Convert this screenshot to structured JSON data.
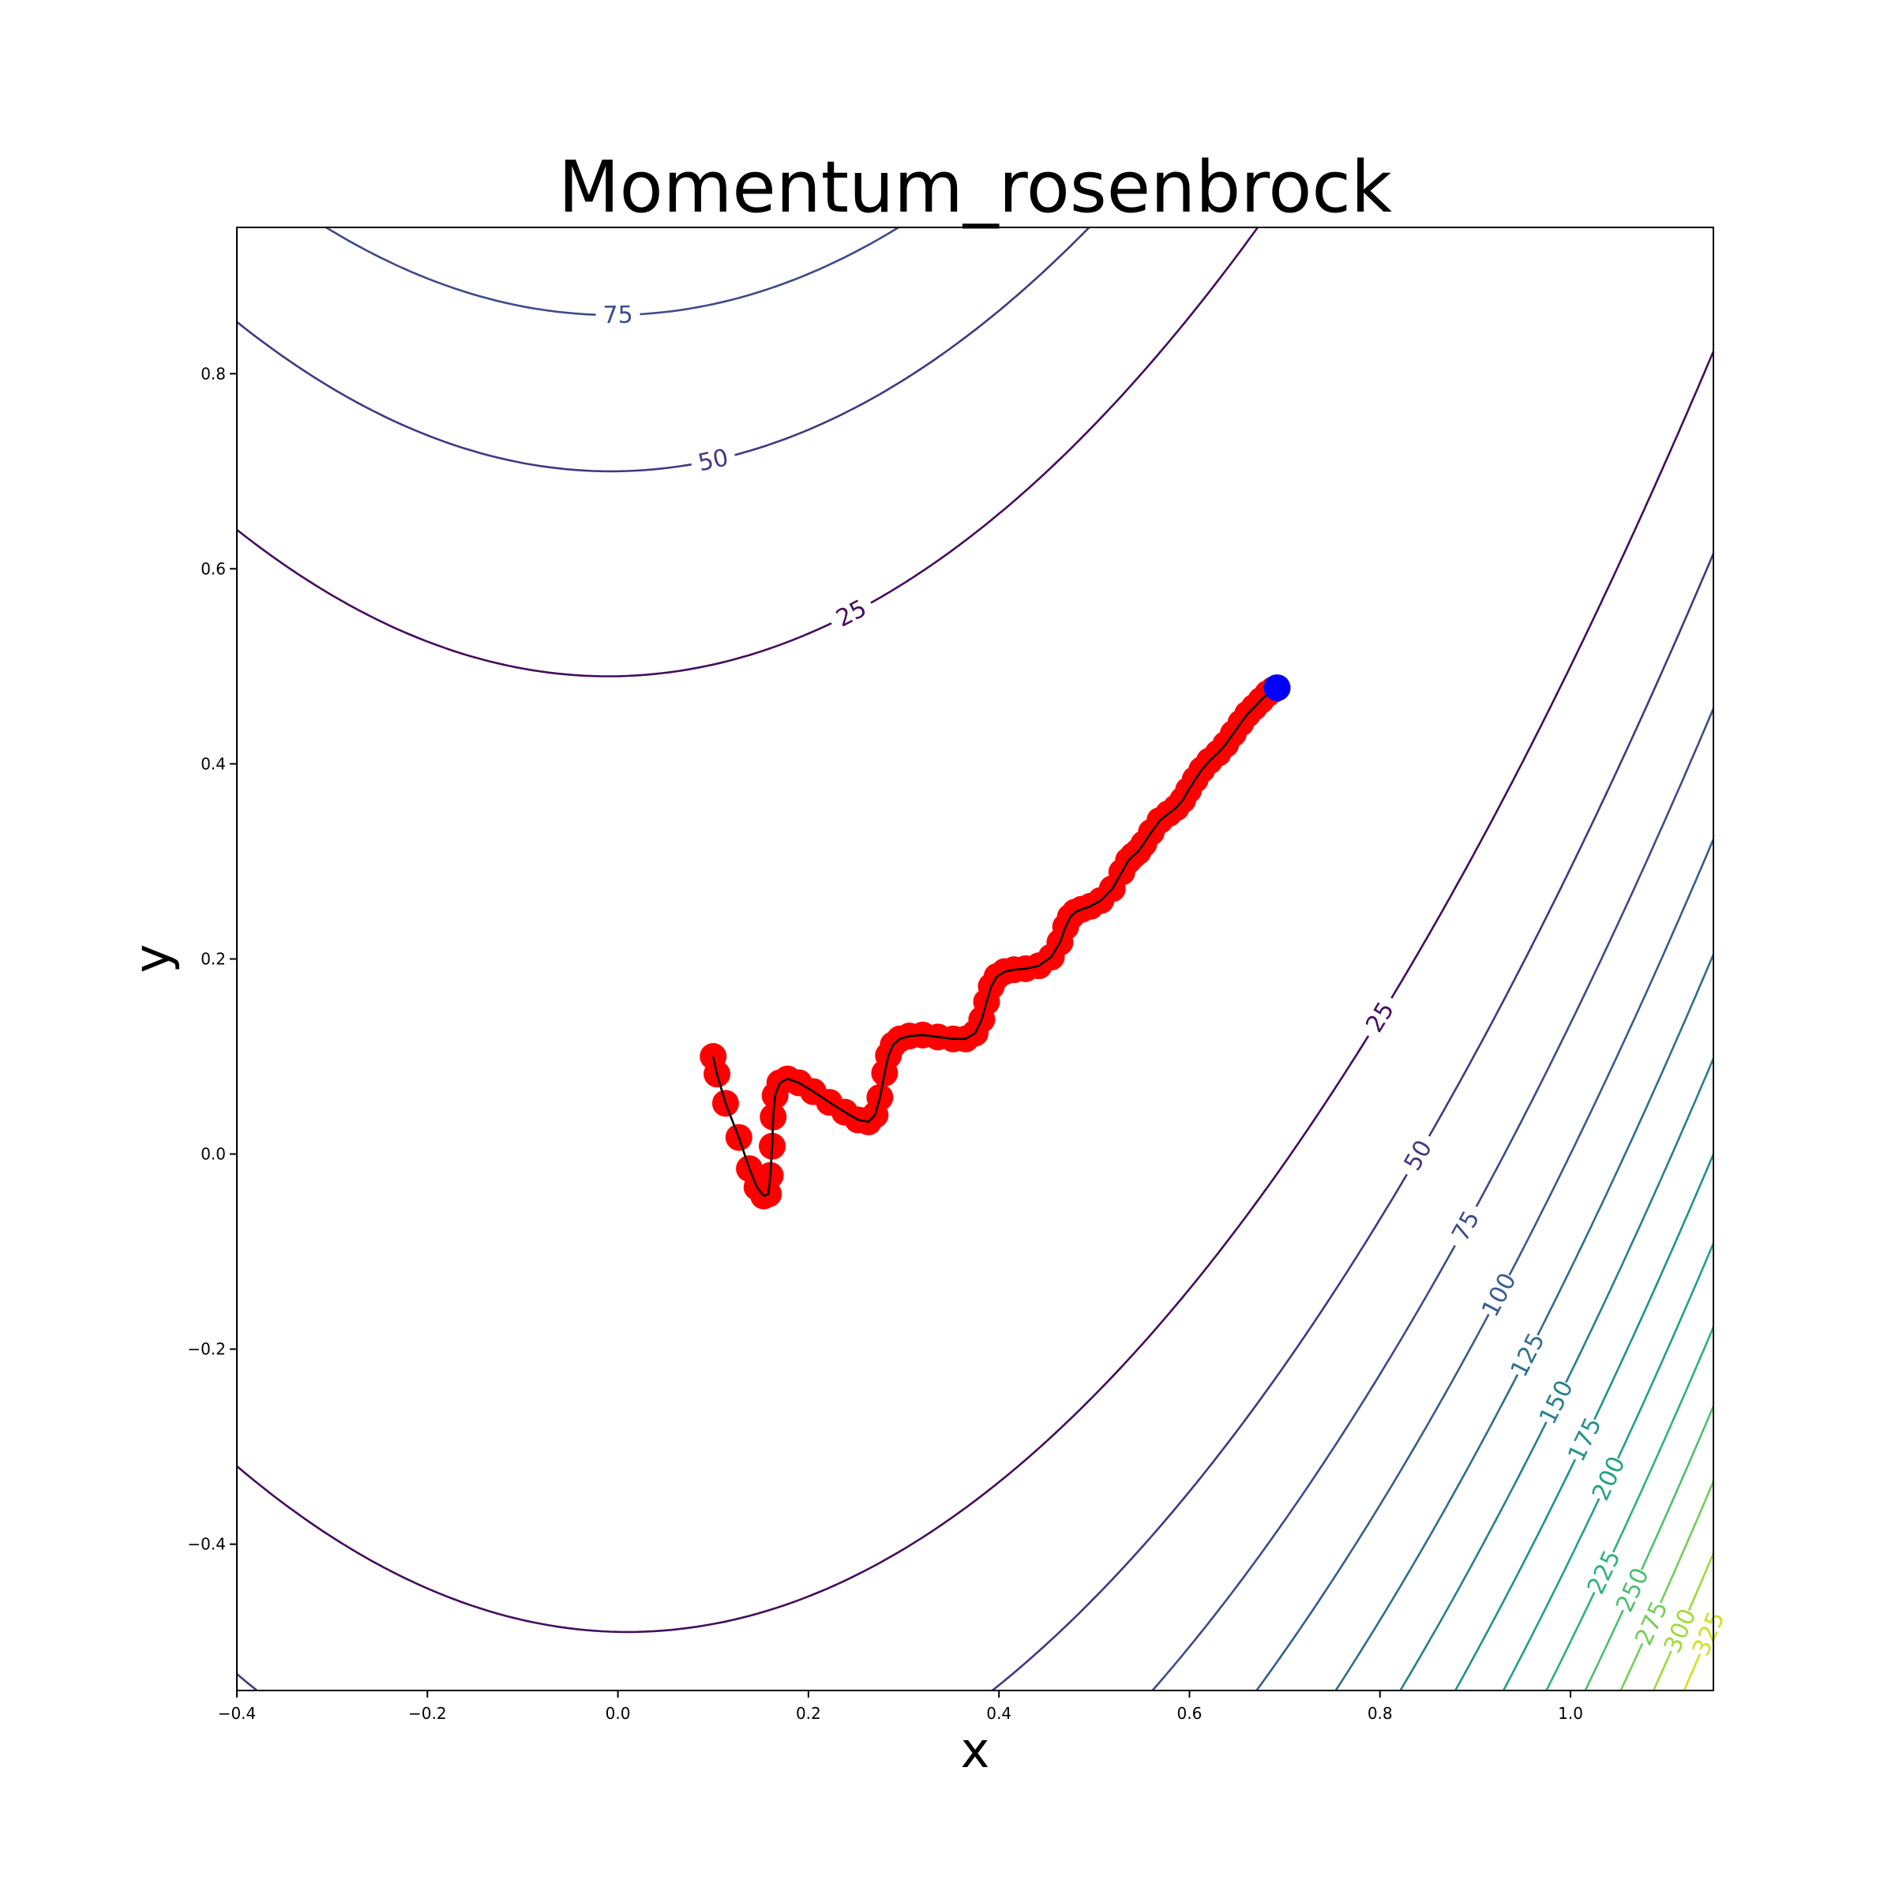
{
  "chart_data": {
    "type": "line",
    "title": "Momentum_rosenbrock",
    "xlabel": "x",
    "ylabel": "y",
    "xlim": [
      -0.4,
      1.15
    ],
    "ylim": [
      -0.55,
      0.95
    ],
    "xticks": [
      -0.4,
      -0.2,
      0.0,
      0.2,
      0.4,
      0.6,
      0.8,
      1.0
    ],
    "xtick_labels": [
      "−0.4",
      "−0.2",
      "0.0",
      "0.2",
      "0.4",
      "0.6",
      "0.8",
      "1.0"
    ],
    "yticks": [
      -0.4,
      -0.2,
      0.0,
      0.2,
      0.4,
      0.6,
      0.8
    ],
    "ytick_labels": [
      "−0.4",
      "−0.2",
      "0.0",
      "0.2",
      "0.4",
      "0.6",
      "0.8"
    ],
    "grid": false,
    "contour": {
      "function": "rosenbrock",
      "levels": [
        25,
        50,
        75,
        100,
        125,
        150,
        175,
        200,
        225,
        250,
        275,
        300,
        325
      ],
      "level_labels": [
        "25",
        "50",
        "75",
        "100",
        "125",
        "150",
        "175",
        "200",
        "225",
        "250",
        "275",
        "300",
        "325"
      ],
      "colormap": "viridis",
      "colors": {
        "25": "#440d5c",
        "50": "#463681",
        "75": "#3f4a8a",
        "100": "#365c8d",
        "125": "#2e6e8e",
        "150": "#277f8e",
        "175": "#21918c",
        "200": "#1fa187",
        "225": "#2db27d",
        "250": "#4ac16d",
        "275": "#71cf57",
        "300": "#a0da39",
        "325": "#d0e11c"
      }
    },
    "path": {
      "name": "",
      "marker_color": "#ff0000",
      "line_color": "#000000",
      "end_marker_color": "#0000ff",
      "x": [
        0.1,
        0.104,
        0.113,
        0.127,
        0.138,
        0.146,
        0.153,
        0.158,
        0.16,
        0.162,
        0.163,
        0.165,
        0.17,
        0.178,
        0.19,
        0.205,
        0.222,
        0.238,
        0.252,
        0.263,
        0.27,
        0.275,
        0.28,
        0.284,
        0.289,
        0.296,
        0.306,
        0.32,
        0.336,
        0.352,
        0.365,
        0.375,
        0.382,
        0.387,
        0.392,
        0.398,
        0.406,
        0.416,
        0.428,
        0.442,
        0.455,
        0.464,
        0.47,
        0.475,
        0.48,
        0.487,
        0.496,
        0.507,
        0.519,
        0.529,
        0.536,
        0.541,
        0.546,
        0.552,
        0.56,
        0.569,
        0.578,
        0.586,
        0.593,
        0.599,
        0.606,
        0.613,
        0.621,
        0.63,
        0.638,
        0.646,
        0.654,
        0.661,
        0.668,
        0.675,
        0.682,
        0.688,
        0.692
      ],
      "y": [
        0.1,
        0.082,
        0.052,
        0.017,
        -0.015,
        -0.034,
        -0.043,
        -0.041,
        -0.022,
        0.008,
        0.038,
        0.06,
        0.073,
        0.077,
        0.073,
        0.064,
        0.053,
        0.043,
        0.035,
        0.033,
        0.04,
        0.058,
        0.083,
        0.101,
        0.112,
        0.118,
        0.121,
        0.122,
        0.12,
        0.118,
        0.118,
        0.124,
        0.138,
        0.156,
        0.172,
        0.182,
        0.187,
        0.189,
        0.19,
        0.193,
        0.202,
        0.217,
        0.233,
        0.243,
        0.248,
        0.251,
        0.254,
        0.26,
        0.272,
        0.289,
        0.301,
        0.306,
        0.31,
        0.318,
        0.33,
        0.342,
        0.349,
        0.355,
        0.363,
        0.373,
        0.384,
        0.394,
        0.403,
        0.411,
        0.42,
        0.431,
        0.442,
        0.451,
        0.458,
        0.465,
        0.472,
        0.476,
        0.478
      ]
    }
  }
}
